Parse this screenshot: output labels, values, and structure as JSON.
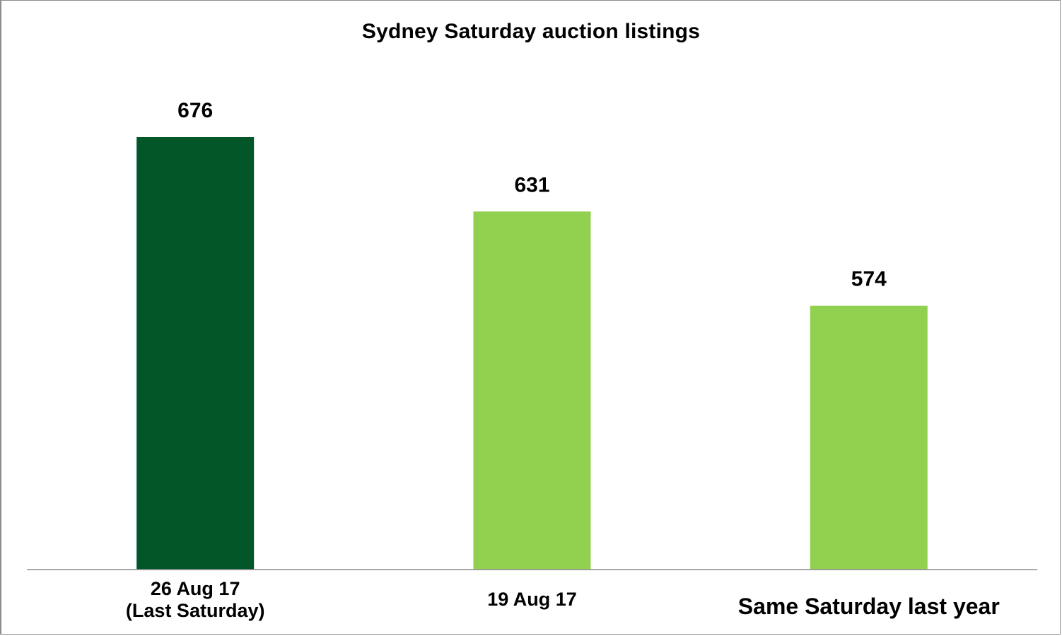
{
  "chart_data": {
    "type": "bar",
    "title": "Sydney Saturday auction listings",
    "categories": [
      [
        "26 Aug 17",
        "(Last Saturday)"
      ],
      [
        "19 Aug 17"
      ],
      [
        "Same Saturday last year"
      ]
    ],
    "values": [
      676,
      631,
      574
    ],
    "bar_colors": [
      "#025628",
      "#92d050",
      "#92d050"
    ],
    "data_labels": [
      "676",
      "631",
      "574"
    ],
    "xlabel": "",
    "ylabel": "",
    "y_axis_visible": false,
    "grid": false,
    "legend": "none"
  }
}
